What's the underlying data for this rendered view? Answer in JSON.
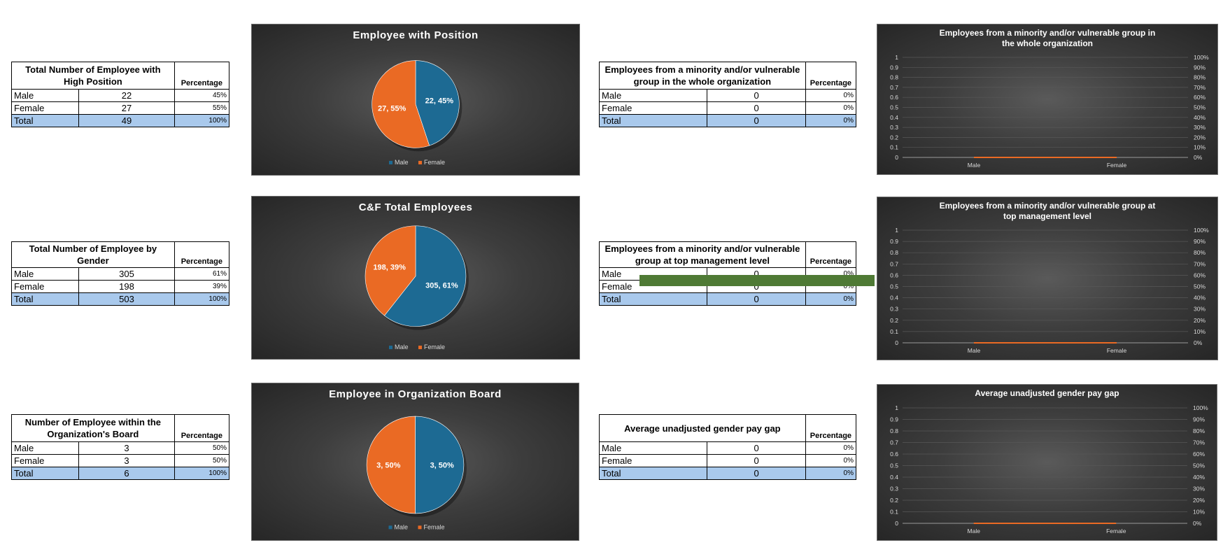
{
  "colors": {
    "male": "#1d6a93",
    "female": "#ea6a24",
    "total_row": "#a9c9ec",
    "marker": "#4f7a35"
  },
  "tables": [
    {
      "id": "high-position",
      "title": "Total Number of Employee with High Position",
      "pct_label": "Percentage",
      "rows": [
        {
          "label": "Male",
          "value": "22",
          "pct": "45%"
        },
        {
          "label": "Female",
          "value": "27",
          "pct": "55%"
        },
        {
          "label": "Total",
          "value": "49",
          "pct": "100%"
        }
      ]
    },
    {
      "id": "gender",
      "title": "Total Number of Employee by Gender",
      "pct_label": "Percentage",
      "rows": [
        {
          "label": "Male",
          "value": "305",
          "pct": "61%"
        },
        {
          "label": "Female",
          "value": "198",
          "pct": "39%"
        },
        {
          "label": "Total",
          "value": "503",
          "pct": "100%"
        }
      ]
    },
    {
      "id": "board",
      "title": "Number of Employee within the Organization's Board",
      "pct_label": "Percentage",
      "rows": [
        {
          "label": "Male",
          "value": "3",
          "pct": "50%"
        },
        {
          "label": "Female",
          "value": "3",
          "pct": "50%"
        },
        {
          "label": "Total",
          "value": "6",
          "pct": "100%"
        }
      ]
    },
    {
      "id": "minority-org",
      "title": "Employees from a minority and/or vulnerable group in the whole organization",
      "pct_label": "Percentage",
      "rows": [
        {
          "label": "Male",
          "value": "0",
          "pct": "0%"
        },
        {
          "label": "Female",
          "value": "0",
          "pct": "0%"
        },
        {
          "label": "Total",
          "value": "0",
          "pct": "0%"
        }
      ]
    },
    {
      "id": "minority-top",
      "title": "Employees from a minority and/or vulnerable group at top management level",
      "pct_label": "Percentage",
      "rows": [
        {
          "label": "Male",
          "value": "0",
          "pct": "0%"
        },
        {
          "label": "Female",
          "value": "0",
          "pct": "0%"
        },
        {
          "label": "Total",
          "value": "0",
          "pct": "0%"
        }
      ]
    },
    {
      "id": "pay-gap",
      "title": "Average unadjusted gender pay gap",
      "pct_label": "Percentage",
      "rows": [
        {
          "label": "Male",
          "value": "0",
          "pct": "0%"
        },
        {
          "label": "Female",
          "value": "0",
          "pct": "0%"
        },
        {
          "label": "Total",
          "value": "0",
          "pct": "0%"
        }
      ]
    }
  ],
  "chart_data": [
    {
      "id": "pie-position",
      "type": "pie",
      "title": "Employee with Position",
      "categories": [
        "Male",
        "Female"
      ],
      "values": [
        22,
        27
      ],
      "labels": [
        "22, 45%",
        "27, 55%"
      ],
      "legend": [
        "Male",
        "Female"
      ],
      "legend_position": "bottom"
    },
    {
      "id": "pie-total",
      "type": "pie",
      "title": "C&F Total Employees",
      "categories": [
        "Male",
        "Female"
      ],
      "values": [
        305,
        198
      ],
      "labels": [
        "305, 61%",
        "198, 39%"
      ],
      "legend": [
        "Male",
        "Female"
      ],
      "legend_position": "bottom"
    },
    {
      "id": "pie-board",
      "type": "pie",
      "title": "Employee in Organization Board",
      "categories": [
        "Male",
        "Female"
      ],
      "values": [
        3,
        3
      ],
      "labels": [
        "3, 50%",
        "3, 50%"
      ],
      "legend": [
        "Male",
        "Female"
      ],
      "legend_position": "bottom"
    },
    {
      "id": "combo-org",
      "type": "line",
      "title": "Employees from a minority and/or vulnerable group in the whole organization",
      "categories": [
        "Male",
        "Female"
      ],
      "values": [
        0,
        0
      ],
      "ylim": [
        0,
        1
      ],
      "yticks": [
        "0",
        "0.1",
        "0.2",
        "0.3",
        "0.4",
        "0.5",
        "0.6",
        "0.7",
        "0.8",
        "0.9",
        "1"
      ],
      "y2ticks": [
        "0%",
        "10%",
        "20%",
        "30%",
        "40%",
        "50%",
        "60%",
        "70%",
        "80%",
        "90%",
        "100%"
      ],
      "grid": true
    },
    {
      "id": "combo-top",
      "type": "line",
      "title": "Employees from a minority and/or vulnerable group at top management level",
      "categories": [
        "Male",
        "Female"
      ],
      "values": [
        0,
        0
      ],
      "ylim": [
        0,
        1
      ],
      "yticks": [
        "0",
        "0.1",
        "0.2",
        "0.3",
        "0.4",
        "0.5",
        "0.6",
        "0.7",
        "0.8",
        "0.9",
        "1"
      ],
      "y2ticks": [
        "0%",
        "10%",
        "20%",
        "30%",
        "40%",
        "50%",
        "60%",
        "70%",
        "80%",
        "90%",
        "100%"
      ],
      "grid": true
    },
    {
      "id": "combo-pay",
      "type": "line",
      "title": "Average unadjusted gender pay gap",
      "categories": [
        "Male",
        "Female"
      ],
      "values": [
        0,
        0
      ],
      "ylim": [
        0,
        1
      ],
      "yticks": [
        "0",
        "0.1",
        "0.2",
        "0.3",
        "0.4",
        "0.5",
        "0.6",
        "0.7",
        "0.8",
        "0.9",
        "1"
      ],
      "y2ticks": [
        "0%",
        "10%",
        "20%",
        "30%",
        "40%",
        "50%",
        "60%",
        "70%",
        "80%",
        "90%",
        "100%"
      ],
      "grid": true
    }
  ]
}
